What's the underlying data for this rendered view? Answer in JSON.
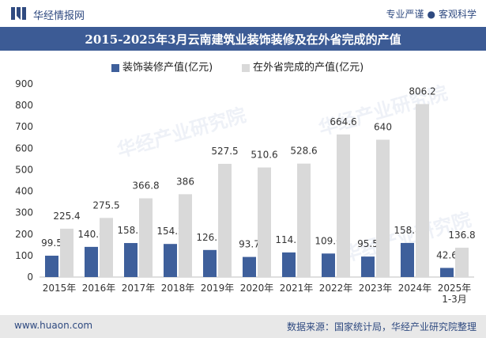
{
  "header": {
    "site_name": "华经情报网",
    "tagline_left": "专业严谨",
    "tagline_right": "客观科学"
  },
  "watermark_text": "华经产业研究院",
  "colors": {
    "accent": "#3c5b95",
    "series1": "#3e5f9b",
    "series2": "#d9d9d9",
    "footer_bg": "#e8e8e8"
  },
  "footer": {
    "website": "www.huaon.com",
    "source": "数据来源：国家统计局，华经产业研究院整理"
  },
  "chart_data": {
    "type": "bar",
    "title": "2015-2025年3月云南建筑业装饰装修及在外省完成的产值",
    "categories": [
      "2015年",
      "2016年",
      "2017年",
      "2018年",
      "2019年",
      "2020年",
      "2021年",
      "2022年",
      "2023年",
      "2024年",
      "2025年\n1-3月"
    ],
    "series": [
      {
        "name": "装饰装修产值(亿元)",
        "values": [
          99.5,
          140.6,
          158.5,
          154.2,
          126.1,
          93.7,
          114.7,
          109.6,
          95.5,
          158.8,
          42.6
        ]
      },
      {
        "name": "在外省完成的产值(亿元)",
        "values": [
          225.4,
          275.5,
          366.8,
          386,
          527.5,
          510.6,
          528.6,
          664.6,
          640,
          806.2,
          136.8
        ]
      }
    ],
    "ylim": [
      0,
      900
    ],
    "yticks": [
      0,
      100,
      200,
      300,
      400,
      500,
      600,
      700,
      800,
      900
    ],
    "grid": false,
    "legend_position": "top"
  }
}
